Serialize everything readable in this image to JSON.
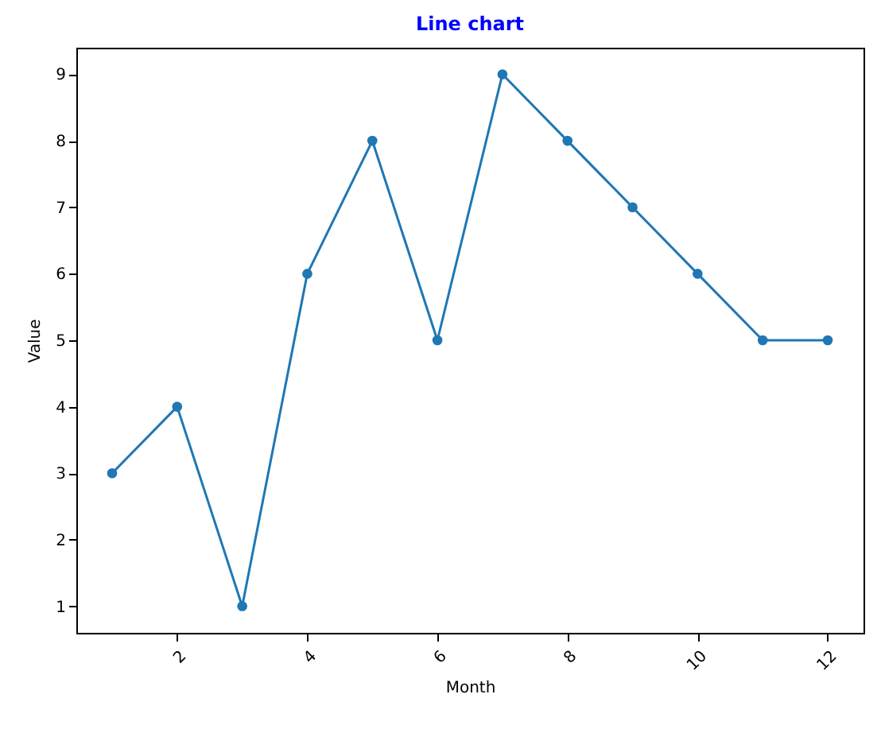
{
  "chart_data": {
    "type": "line",
    "title": "Line chart",
    "xlabel": "Month",
    "ylabel": "Value",
    "x": [
      1,
      2,
      3,
      4,
      5,
      6,
      7,
      8,
      9,
      10,
      11,
      12
    ],
    "series": [
      {
        "color": "#1f77b4",
        "values": [
          3,
          4,
          1,
          6,
          8,
          5,
          9,
          8,
          7,
          6,
          5,
          5
        ]
      }
    ],
    "xlim": [
      0.45,
      12.55
    ],
    "xticks": [
      2,
      4,
      6,
      8,
      10,
      12
    ],
    "ylim": [
      0.6,
      9.4
    ],
    "yticks": [
      1,
      2,
      3,
      4,
      5,
      6,
      7,
      8,
      9
    ],
    "grid": false,
    "legend": false,
    "marker": "circle",
    "line_style": "solid"
  }
}
